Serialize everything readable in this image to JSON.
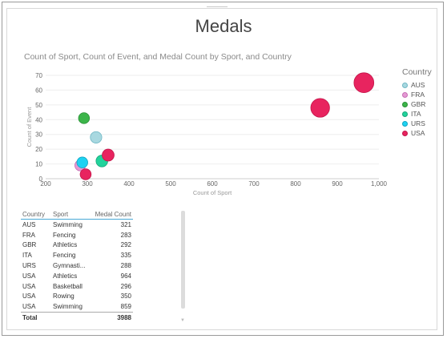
{
  "page": {
    "title": "Medals"
  },
  "chart_data": {
    "type": "scatter",
    "title": "Count of Sport, Count of Event, and Medal Count by Sport, and Country",
    "xlabel": "Count of Sport",
    "ylabel": "Count of Event",
    "xlim": [
      200,
      1000
    ],
    "ylim": [
      0,
      70
    ],
    "xticks": [
      "200",
      "300",
      "400",
      "500",
      "600",
      "700",
      "800",
      "900",
      "1,000"
    ],
    "yticks": [
      "0",
      "10",
      "20",
      "30",
      "40",
      "50",
      "60",
      "70"
    ],
    "legend_title": "Country",
    "legend_position": "right",
    "series": [
      {
        "name": "AUS",
        "color": "#a8d8e0",
        "stroke": "#6fb7c4",
        "points": [
          {
            "x": 321,
            "y": 28,
            "size": 321
          }
        ]
      },
      {
        "name": "FRA",
        "color": "#e59ad4",
        "stroke": "#c56db3",
        "points": [
          {
            "x": 283,
            "y": 9,
            "size": 283
          }
        ]
      },
      {
        "name": "GBR",
        "color": "#3cb54a",
        "stroke": "#2a8f36",
        "points": [
          {
            "x": 292,
            "y": 41,
            "size": 292
          }
        ]
      },
      {
        "name": "ITA",
        "color": "#22d39c",
        "stroke": "#18a67a",
        "points": [
          {
            "x": 335,
            "y": 12,
            "size": 335
          }
        ]
      },
      {
        "name": "URS",
        "color": "#1ed2f2",
        "stroke": "#10a5c1",
        "points": [
          {
            "x": 288,
            "y": 11,
            "size": 288
          }
        ]
      },
      {
        "name": "USA",
        "color": "#e8245f",
        "stroke": "#c2164a",
        "points": [
          {
            "x": 964,
            "y": 65,
            "size": 964
          },
          {
            "x": 859,
            "y": 48,
            "size": 859
          },
          {
            "x": 350,
            "y": 16,
            "size": 350
          },
          {
            "x": 296,
            "y": 3,
            "size": 296
          }
        ]
      }
    ]
  },
  "table": {
    "headers": [
      "Country",
      "Sport",
      "Medal Count"
    ],
    "rows": [
      [
        "AUS",
        "Swimming",
        "321"
      ],
      [
        "FRA",
        "Fencing",
        "283"
      ],
      [
        "GBR",
        "Athletics",
        "292"
      ],
      [
        "ITA",
        "Fencing",
        "335"
      ],
      [
        "URS",
        "Gymnasti...",
        "288"
      ],
      [
        "USA",
        "Athletics",
        "964"
      ],
      [
        "USA",
        "Basketball",
        "296"
      ],
      [
        "USA",
        "Rowing",
        "350"
      ],
      [
        "USA",
        "Swimming",
        "859"
      ]
    ],
    "total_label": "Total",
    "total_value": "3988"
  }
}
